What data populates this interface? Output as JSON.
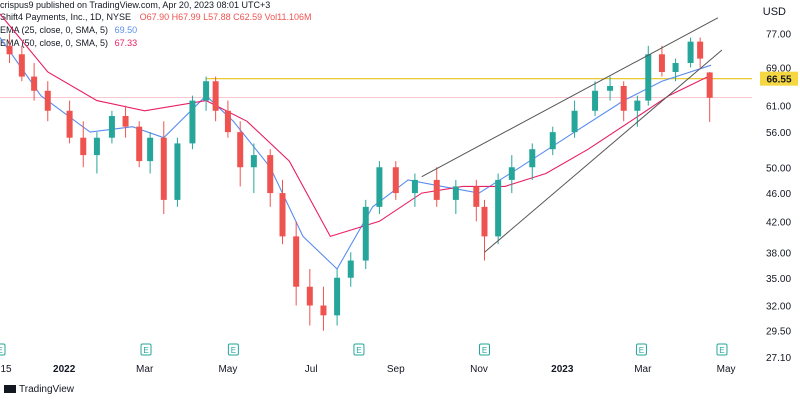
{
  "header": {
    "line1": "crispus9 published on TradingView.com, Apr 20, 2023 08:01 UTC+3",
    "line2_prefix": "Shift4 Payments, Inc., 1D, NYSE",
    "ohlc": "O67.90  H67.99  L57.88  C62.59  Vol11.106M",
    "ema1_label": "EMA (25, close, 0, SMA, 5)",
    "ema1_value": "69.50",
    "ema2_label": "EMA (50, close, 0, SMA, 5)",
    "ema2_value": "67.33"
  },
  "colors": {
    "up": "#26a69a",
    "down": "#ef5350",
    "ema25": "#5b8def",
    "ema50": "#e91e63",
    "resistance": "#e6c21a",
    "channel": "#555555",
    "event_marker": "#26a69a",
    "earnings_marker": "#ef5350",
    "text": "#131722"
  },
  "axis": {
    "currency": "USD",
    "price_labels": [
      "77.00",
      "69.00",
      "61.00",
      "56.00",
      "50.00",
      "46.00",
      "42.00",
      "38.00",
      "35.00",
      "32.00",
      "29.50",
      "27.10"
    ],
    "level_label": "66.55",
    "date_labels": [
      "15",
      "2022",
      "Mar",
      "May",
      "Jul",
      "Sep",
      "Nov",
      "2023",
      "Mar",
      "May"
    ]
  },
  "footer": {
    "brand": "TradingView"
  },
  "chart_data": {
    "type": "candlestick",
    "title": "Shift4 Payments, Inc., 1D, NYSE",
    "yscale": "log",
    "ylim": [
      27.1,
      82
    ],
    "x_range": [
      "2021-11-15",
      "2023-05-20"
    ],
    "horizontal_level": 66.55,
    "series": [
      {
        "name": "EMA (25, close, 0, SMA, 5)",
        "points": [
          [
            "2021-11-15",
            76
          ],
          [
            "2021-12-15",
            63
          ],
          [
            "2022-01-20",
            56
          ],
          [
            "2022-02-20",
            57
          ],
          [
            "2022-03-15",
            55
          ],
          [
            "2022-04-15",
            63
          ],
          [
            "2022-05-05",
            58
          ],
          [
            "2022-06-01",
            50
          ],
          [
            "2022-06-25",
            40
          ],
          [
            "2022-07-20",
            36
          ],
          [
            "2022-08-15",
            44
          ],
          [
            "2022-09-10",
            48
          ],
          [
            "2022-10-05",
            47
          ],
          [
            "2022-11-01",
            46
          ],
          [
            "2022-12-01",
            50
          ],
          [
            "2023-01-10",
            56
          ],
          [
            "2023-02-15",
            62
          ],
          [
            "2023-03-15",
            66
          ],
          [
            "2023-04-20",
            69.5
          ]
        ]
      },
      {
        "name": "EMA (50, close, 0, SMA, 5)",
        "points": [
          [
            "2021-11-15",
            82
          ],
          [
            "2021-12-20",
            68
          ],
          [
            "2022-01-25",
            62
          ],
          [
            "2022-03-01",
            60
          ],
          [
            "2022-04-15",
            62
          ],
          [
            "2022-05-15",
            58
          ],
          [
            "2022-06-15",
            51
          ],
          [
            "2022-07-15",
            40
          ],
          [
            "2022-08-20",
            42
          ],
          [
            "2022-09-20",
            46
          ],
          [
            "2022-10-20",
            47
          ],
          [
            "2022-11-20",
            47
          ],
          [
            "2022-12-20",
            49
          ],
          [
            "2023-01-20",
            53
          ],
          [
            "2023-02-20",
            58
          ],
          [
            "2023-03-20",
            63
          ],
          [
            "2023-04-20",
            67.33
          ]
        ]
      }
    ],
    "channel_lines": [
      {
        "from": [
          "2022-09-20",
          48.5
        ],
        "to": [
          "2023-04-25",
          81
        ]
      },
      {
        "from": [
          "2022-11-05",
          38
        ],
        "to": [
          "2023-04-28",
          73
        ]
      }
    ],
    "event_markers": [
      {
        "date": "2021-11-15",
        "label": "E"
      },
      {
        "date": "2022-03-02",
        "label": "E"
      },
      {
        "date": "2022-05-05",
        "label": "E"
      },
      {
        "date": "2022-08-05",
        "label": "E"
      },
      {
        "date": "2022-11-05",
        "label": "E"
      },
      {
        "date": "2023-02-28",
        "label": "E"
      },
      {
        "date": "2023-04-28",
        "label": "E"
      }
    ],
    "candles": [
      [
        "2021-11-22",
        74,
        77,
        70,
        72
      ],
      [
        "2021-12-01",
        72,
        74,
        66,
        67
      ],
      [
        "2021-12-10",
        67,
        70,
        62,
        64
      ],
      [
        "2021-12-20",
        64,
        66,
        58,
        60
      ],
      [
        "2022-01-05",
        60,
        62,
        54,
        55
      ],
      [
        "2022-01-15",
        55,
        58,
        50,
        52
      ],
      [
        "2022-01-25",
        52,
        56,
        49,
        55
      ],
      [
        "2022-02-05",
        55,
        60,
        54,
        59
      ],
      [
        "2022-02-15",
        59,
        61,
        55,
        57
      ],
      [
        "2022-02-25",
        57,
        58,
        50,
        51
      ],
      [
        "2022-03-05",
        51,
        56,
        49,
        55
      ],
      [
        "2022-03-15",
        55,
        58,
        43,
        45
      ],
      [
        "2022-03-25",
        45,
        55,
        44,
        54
      ],
      [
        "2022-04-05",
        54,
        63,
        53,
        62
      ],
      [
        "2022-04-15",
        62,
        67,
        60,
        66
      ],
      [
        "2022-04-22",
        66,
        67,
        58,
        60
      ],
      [
        "2022-05-01",
        60,
        62,
        55,
        56
      ],
      [
        "2022-05-10",
        56,
        58,
        47,
        50
      ],
      [
        "2022-05-20",
        50,
        54,
        46,
        52
      ],
      [
        "2022-06-01",
        52,
        53,
        44,
        46
      ],
      [
        "2022-06-10",
        46,
        48,
        39,
        40
      ],
      [
        "2022-06-20",
        40,
        42,
        32,
        34
      ],
      [
        "2022-06-30",
        34,
        36,
        30,
        32
      ],
      [
        "2022-07-10",
        32,
        34,
        29.5,
        31
      ],
      [
        "2022-07-20",
        31,
        36,
        30,
        35
      ],
      [
        "2022-07-30",
        35,
        38,
        34,
        37
      ],
      [
        "2022-08-10",
        37,
        45,
        36,
        44
      ],
      [
        "2022-08-20",
        44,
        51,
        43,
        50
      ],
      [
        "2022-09-01",
        50,
        51,
        45,
        46
      ],
      [
        "2022-09-15",
        46,
        49,
        44,
        48
      ],
      [
        "2022-10-01",
        48,
        50,
        44,
        45
      ],
      [
        "2022-10-15",
        45,
        48,
        43,
        47
      ],
      [
        "2022-10-30",
        47,
        48,
        42,
        44
      ],
      [
        "2022-11-05",
        44,
        45,
        37,
        40
      ],
      [
        "2022-11-15",
        40,
        49,
        39,
        48
      ],
      [
        "2022-11-25",
        48,
        52,
        46,
        50
      ],
      [
        "2022-12-10",
        50,
        54,
        48,
        53
      ],
      [
        "2022-12-25",
        53,
        57,
        52,
        56
      ],
      [
        "2023-01-10",
        56,
        62,
        55,
        60
      ],
      [
        "2023-01-25",
        60,
        66,
        59,
        64
      ],
      [
        "2023-02-05",
        64,
        67,
        62,
        65
      ],
      [
        "2023-02-15",
        65,
        66,
        58,
        60
      ],
      [
        "2023-02-25",
        60,
        63,
        57,
        62
      ],
      [
        "2023-03-05",
        62,
        74,
        61,
        72
      ],
      [
        "2023-03-15",
        72,
        74,
        67,
        68
      ],
      [
        "2023-03-25",
        68,
        71,
        66,
        70
      ],
      [
        "2023-04-05",
        70,
        76,
        69,
        75
      ],
      [
        "2023-04-12",
        75,
        76,
        69,
        71
      ],
      [
        "2023-04-19",
        67.9,
        67.99,
        57.88,
        62.59
      ]
    ]
  }
}
